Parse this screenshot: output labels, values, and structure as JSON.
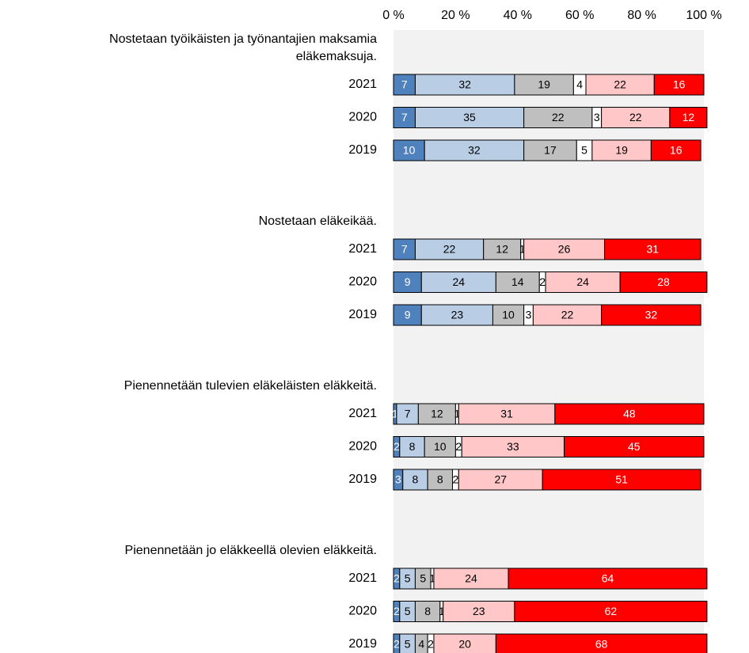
{
  "chart_data": {
    "type": "bar",
    "orientation": "horizontal",
    "stacked": true,
    "xlim": [
      0,
      100
    ],
    "xticks": [
      {
        "value": 0,
        "label": "0 %"
      },
      {
        "value": 20,
        "label": "20 %"
      },
      {
        "value": 40,
        "label": "40 %"
      },
      {
        "value": 60,
        "label": "60 %"
      },
      {
        "value": 80,
        "label": "80 %"
      },
      {
        "value": 100,
        "label": "100 %"
      }
    ],
    "groups": [
      {
        "title": [
          "Nostetaan työikäisten ja työnantajien maksamia",
          "eläkemaksuja."
        ],
        "categories": [
          "2021",
          "2020",
          "2019"
        ],
        "series": [
          {
            "color": "#4f81bd",
            "values": [
              7,
              7,
              10
            ]
          },
          {
            "color": "#b9cde5",
            "values": [
              32,
              35,
              32
            ]
          },
          {
            "color": "#bfbfbf",
            "values": [
              19,
              22,
              17
            ]
          },
          {
            "color": "#ffffff",
            "values": [
              4,
              3,
              5
            ]
          },
          {
            "color": "#ffc7c7",
            "values": [
              22,
              22,
              19
            ]
          },
          {
            "color": "#ff0000",
            "values": [
              16,
              12,
              16
            ]
          }
        ]
      },
      {
        "title": [
          "Nostetaan eläkeikää."
        ],
        "categories": [
          "2021",
          "2020",
          "2019"
        ],
        "series": [
          {
            "color": "#4f81bd",
            "values": [
              7,
              9,
              9
            ]
          },
          {
            "color": "#b9cde5",
            "values": [
              22,
              24,
              23
            ]
          },
          {
            "color": "#bfbfbf",
            "values": [
              12,
              14,
              10
            ]
          },
          {
            "color": "#ffffff",
            "values": [
              1,
              2,
              3
            ]
          },
          {
            "color": "#ffc7c7",
            "values": [
              26,
              24,
              22
            ]
          },
          {
            "color": "#ff0000",
            "values": [
              31,
              28,
              32
            ]
          }
        ]
      },
      {
        "title": [
          "Pienennetään tulevien eläkeläisten eläkkeitä."
        ],
        "categories": [
          "2021",
          "2020",
          "2019"
        ],
        "series": [
          {
            "color": "#4f81bd",
            "values": [
              1,
              2,
              3
            ]
          },
          {
            "color": "#b9cde5",
            "values": [
              7,
              8,
              8
            ]
          },
          {
            "color": "#bfbfbf",
            "values": [
              12,
              10,
              8
            ]
          },
          {
            "color": "#ffffff",
            "values": [
              1,
              2,
              2
            ]
          },
          {
            "color": "#ffc7c7",
            "values": [
              31,
              33,
              27
            ]
          },
          {
            "color": "#ff0000",
            "values": [
              48,
              45,
              51
            ]
          }
        ]
      },
      {
        "title": [
          "Pienennetään jo eläkkeellä olevien eläkkeitä."
        ],
        "categories": [
          "2021",
          "2020",
          "2019"
        ],
        "series": [
          {
            "color": "#4f81bd",
            "values": [
              2,
              2,
              2
            ]
          },
          {
            "color": "#b9cde5",
            "values": [
              5,
              5,
              5
            ]
          },
          {
            "color": "#bfbfbf",
            "values": [
              5,
              8,
              4
            ]
          },
          {
            "color": "#ffffff",
            "values": [
              1,
              1,
              2
            ]
          },
          {
            "color": "#ffc7c7",
            "values": [
              24,
              23,
              20
            ]
          },
          {
            "color": "#ff0000",
            "values": [
              64,
              62,
              68
            ]
          }
        ]
      }
    ]
  }
}
